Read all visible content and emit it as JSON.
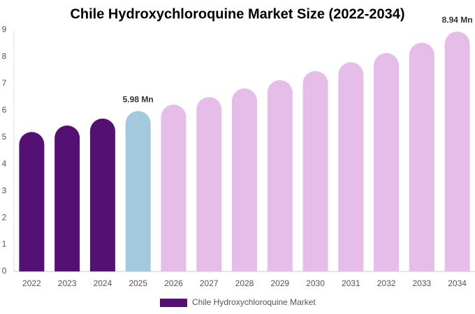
{
  "chart_data": {
    "type": "bar",
    "title": "Chile Hydroxychloroquine Market Size (2022-2034)",
    "categories": [
      "2022",
      "2023",
      "2024",
      "2025",
      "2026",
      "2027",
      "2028",
      "2029",
      "2030",
      "2031",
      "2032",
      "2033",
      "2034"
    ],
    "series": [
      {
        "name": "Chile Hydroxychloroquine Market",
        "color": "#541173",
        "colors": [
          "#541173",
          "#541173",
          "#541173",
          "#a4c9dd",
          "#e6bde8",
          "#e6bde8",
          "#e6bde8",
          "#e6bde8",
          "#e6bde8",
          "#e6bde8",
          "#e6bde8",
          "#e6bde8",
          "#e6bde8"
        ],
        "values": [
          5.2,
          5.44,
          5.7,
          5.98,
          6.22,
          6.5,
          6.82,
          7.13,
          7.47,
          7.8,
          8.14,
          8.53,
          8.94
        ],
        "value_labels": [
          null,
          null,
          null,
          "5.98 Mn",
          null,
          null,
          null,
          null,
          null,
          null,
          null,
          null,
          "8.94 Mn"
        ]
      }
    ],
    "ylim": [
      0,
      9
    ],
    "yticks": [
      0,
      1,
      2,
      3,
      4,
      5,
      6,
      7,
      8,
      9
    ],
    "grid": false
  }
}
